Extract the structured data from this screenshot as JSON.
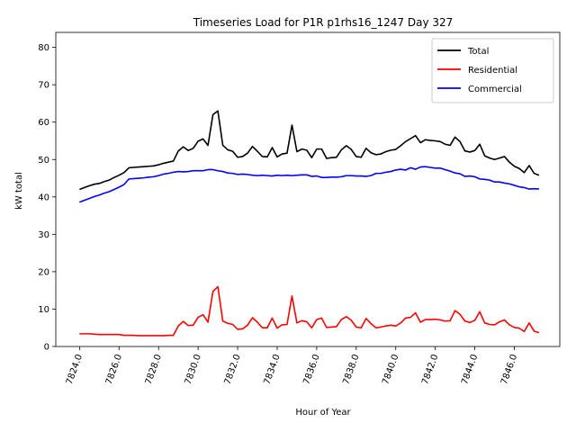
{
  "chart_data": {
    "type": "line",
    "title": "Timeseries Load for P1R p1rhs16_1247  Day 327",
    "xlabel": "Hour of Year",
    "ylabel": "kW total",
    "xlim": [
      7822.8,
      7848.3
    ],
    "ylim": [
      0,
      84
    ],
    "xticks": [
      7824,
      7826,
      7828,
      7830,
      7832,
      7834,
      7836,
      7838,
      7840,
      7842,
      7844,
      7846
    ],
    "xtick_labels": [
      "7824.0",
      "7826.0",
      "7828.0",
      "7830.0",
      "7832.0",
      "7834.0",
      "7836.0",
      "7838.0",
      "7840.0",
      "7842.0",
      "7844.0",
      "7846.0"
    ],
    "yticks": [
      0,
      10,
      20,
      30,
      40,
      50,
      60,
      70,
      80
    ],
    "ytick_labels": [
      "0",
      "10",
      "20",
      "30",
      "40",
      "50",
      "60",
      "70",
      "80"
    ],
    "legend_position": "top-right",
    "x_start": 7824.0,
    "x_step": 0.25,
    "series": [
      {
        "name": "Total",
        "color": "#000000",
        "values": [
          42.0,
          42.5,
          43.0,
          43.4,
          43.6,
          44.1,
          44.5,
          45.2,
          45.8,
          46.5,
          47.8,
          47.9,
          48.0,
          48.1,
          48.2,
          48.3,
          48.6,
          49.0,
          49.3,
          49.6,
          52.3,
          53.4,
          52.4,
          53.0,
          54.9,
          55.5,
          53.8,
          62.0,
          63.0,
          53.8,
          52.6,
          52.2,
          50.6,
          50.8,
          51.7,
          53.5,
          52.2,
          50.8,
          50.7,
          53.2,
          50.7,
          51.5,
          51.7,
          59.2,
          52.1,
          52.8,
          52.5,
          50.5,
          52.8,
          52.8,
          50.3,
          50.5,
          50.6,
          52.6,
          53.7,
          52.7,
          50.8,
          50.6,
          53.0,
          51.8,
          51.3,
          51.5,
          52.1,
          52.5,
          52.7,
          53.7,
          54.8,
          55.6,
          56.4,
          54.5,
          55.3,
          55.1,
          55.0,
          54.8,
          54.1,
          53.8,
          56.0,
          54.8,
          52.3,
          52.0,
          52.4,
          54.1,
          51.0,
          50.4,
          50.0,
          50.4,
          50.8,
          49.3,
          48.2,
          47.6,
          46.5,
          48.4,
          46.3,
          45.8
        ]
      },
      {
        "name": "Residential",
        "color": "#ff0000",
        "values": [
          3.4,
          3.4,
          3.4,
          3.3,
          3.2,
          3.2,
          3.2,
          3.2,
          3.2,
          3.0,
          3.0,
          3.0,
          2.9,
          2.9,
          2.9,
          2.9,
          2.9,
          2.9,
          3.0,
          3.0,
          5.5,
          6.7,
          5.6,
          5.7,
          7.8,
          8.5,
          6.5,
          14.7,
          16.0,
          6.8,
          6.2,
          5.9,
          4.6,
          4.7,
          5.7,
          7.7,
          6.5,
          5.0,
          5.0,
          7.6,
          4.9,
          5.8,
          5.9,
          13.5,
          6.3,
          6.9,
          6.6,
          5.0,
          7.2,
          7.6,
          5.1,
          5.2,
          5.3,
          7.2,
          8.0,
          7.0,
          5.2,
          5.0,
          7.5,
          6.1,
          5.0,
          5.2,
          5.5,
          5.7,
          5.5,
          6.3,
          7.6,
          7.8,
          9.0,
          6.5,
          7.2,
          7.2,
          7.3,
          7.1,
          6.8,
          6.9,
          9.6,
          8.6,
          6.8,
          6.4,
          7.0,
          9.3,
          6.3,
          5.9,
          5.8,
          6.6,
          7.1,
          5.8,
          5.1,
          4.9,
          4.0,
          6.3,
          4.1,
          3.7
        ]
      },
      {
        "name": "Commercial",
        "color": "#0000ff",
        "values": [
          38.6,
          39.1,
          39.6,
          40.1,
          40.5,
          41.0,
          41.4,
          42.0,
          42.6,
          43.3,
          44.8,
          44.9,
          45.0,
          45.1,
          45.3,
          45.4,
          45.7,
          46.1,
          46.3,
          46.6,
          46.8,
          46.7,
          46.8,
          47.0,
          47.0,
          47.0,
          47.3,
          47.3,
          47.0,
          46.8,
          46.4,
          46.3,
          46.0,
          46.1,
          46.0,
          45.8,
          45.7,
          45.8,
          45.7,
          45.6,
          45.8,
          45.7,
          45.8,
          45.7,
          45.8,
          45.9,
          45.9,
          45.5,
          45.6,
          45.2,
          45.2,
          45.3,
          45.3,
          45.4,
          45.7,
          45.7,
          45.6,
          45.6,
          45.5,
          45.7,
          46.3,
          46.3,
          46.6,
          46.8,
          47.2,
          47.4,
          47.2,
          47.8,
          47.4,
          48.0,
          48.1,
          47.9,
          47.7,
          47.7,
          47.3,
          46.9,
          46.4,
          46.2,
          45.5,
          45.6,
          45.4,
          44.8,
          44.7,
          44.5,
          44.0,
          44.0,
          43.7,
          43.5,
          43.1,
          42.7,
          42.5,
          42.1,
          42.2,
          42.1
        ]
      }
    ]
  }
}
